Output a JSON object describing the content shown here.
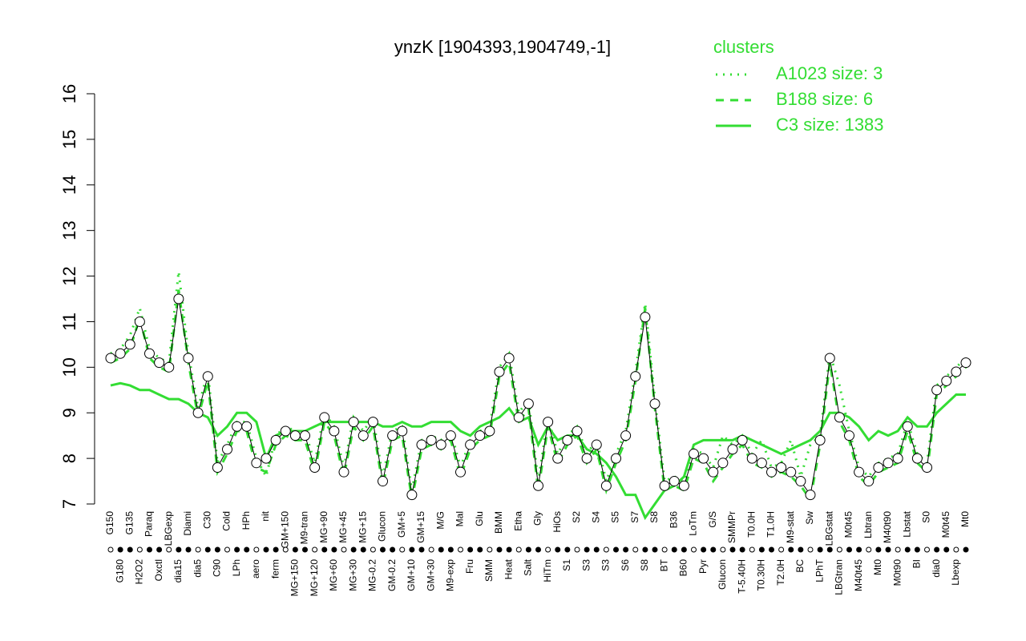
{
  "chart_data": {
    "type": "line",
    "title": "ynzK [1904393,1904749,-1]",
    "legend_title": "clusters",
    "legend": "top-right",
    "categories": [
      "G150",
      "G180",
      "G135",
      "H2O2",
      "Paraq",
      "Oxctl",
      "LBGexp",
      "dia15",
      "Diami",
      "dia5",
      "C30",
      "C90",
      "Cold",
      "LPh",
      "HPh",
      "aero",
      "nit",
      "ferm",
      "GM+150",
      "MG+150",
      "M9-tran",
      "MG+120",
      "MG+90",
      "MG+60",
      "MG+45",
      "MG+30",
      "MG+15",
      "MG-0.2",
      "Glucon",
      "GM-0.2",
      "GM+5",
      "GM+10",
      "GM+15",
      "GM+30",
      "M/G",
      "M9-exp",
      "Mal",
      "Fru",
      "Glu",
      "SMM",
      "BMM",
      "Heat",
      "Etha",
      "Salt",
      "Gly",
      "HiTm",
      "HiOs",
      "S1",
      "S2",
      "S3",
      "S4",
      "S3",
      "S5",
      "S6",
      "S7",
      "S8",
      "S8",
      "BT",
      "B36",
      "B60",
      "LoTm",
      "Pyr",
      "G/S",
      "Glucon",
      "SMMPr",
      "T-5.40H",
      "T0.0H",
      "T0.30H",
      "T1.0H",
      "T2.0H",
      "M9-stat",
      "BC",
      "Sw",
      "LPhT",
      "LBGstat",
      "LBGtran",
      "M0t45",
      "M40t45",
      "Lbtran",
      "Mt0",
      "M40t90",
      "M0t90",
      "Lbstat",
      "BI",
      "S0",
      "dia0",
      "M0t45",
      "Lbexp",
      "Mt0"
    ],
    "points": [
      10.2,
      10.3,
      10.5,
      11.0,
      10.3,
      10.1,
      10.0,
      11.5,
      10.2,
      9.0,
      9.8,
      7.8,
      8.2,
      8.7,
      8.7,
      7.9,
      8.0,
      8.4,
      8.6,
      8.5,
      8.5,
      7.8,
      8.9,
      8.6,
      7.7,
      8.8,
      8.5,
      8.8,
      7.5,
      8.5,
      8.6,
      7.2,
      8.3,
      8.4,
      8.3,
      8.5,
      7.7,
      8.3,
      8.5,
      8.6,
      9.9,
      10.2,
      8.9,
      9.2,
      7.4,
      8.8,
      8.0,
      8.4,
      8.6,
      8.0,
      8.3,
      7.4,
      8.0,
      8.5,
      9.8,
      11.1,
      9.2,
      7.4,
      7.5,
      7.4,
      8.1,
      8.0,
      7.7,
      7.9,
      8.2,
      8.4,
      8.0,
      7.9,
      7.7,
      7.8,
      7.7,
      7.5,
      7.2,
      8.4,
      10.2,
      8.9,
      8.5,
      7.7,
      7.5,
      7.8,
      7.9,
      8.0,
      8.7,
      8.0,
      7.8,
      9.5,
      9.7,
      9.9,
      10.1
    ],
    "point_color": "#000000",
    "series": [
      {
        "name": "A1023 size: 3",
        "color": "#33dd33",
        "style": "dotted",
        "values": [
          10.3,
          10.4,
          10.7,
          11.3,
          10.4,
          10.2,
          10.1,
          12.1,
          10.3,
          9.1,
          9.9,
          7.9,
          8.3,
          8.8,
          8.8,
          8.0,
          7.6,
          8.5,
          8.7,
          8.6,
          8.6,
          7.9,
          9.0,
          8.7,
          7.8,
          8.9,
          8.6,
          8.9,
          7.6,
          8.6,
          8.7,
          7.3,
          8.4,
          8.5,
          8.4,
          8.6,
          7.8,
          8.4,
          8.6,
          8.7,
          10.0,
          10.3,
          9.0,
          9.3,
          7.5,
          8.9,
          8.1,
          8.5,
          8.7,
          8.1,
          8.4,
          7.5,
          8.1,
          8.6,
          9.9,
          11.4,
          9.3,
          7.5,
          7.6,
          7.5,
          8.2,
          8.1,
          7.8,
          8.5,
          8.3,
          8.5,
          8.1,
          8.4,
          7.8,
          7.9,
          8.4,
          7.6,
          8.3,
          8.5,
          10.3,
          9.6,
          8.6,
          7.8,
          7.6,
          7.9,
          8.0,
          8.1,
          8.8,
          8.1,
          7.9,
          9.6,
          9.8,
          10.0,
          10.2
        ]
      },
      {
        "name": "B188 size: 6",
        "color": "#33dd33",
        "style": "dashed",
        "values": [
          10.1,
          10.2,
          10.4,
          11.1,
          10.2,
          10.0,
          9.9,
          11.7,
          10.1,
          8.9,
          9.7,
          7.7,
          8.1,
          8.6,
          8.6,
          7.8,
          7.7,
          8.3,
          8.5,
          8.4,
          8.4,
          7.7,
          8.8,
          8.5,
          7.6,
          8.7,
          8.4,
          8.7,
          7.4,
          8.4,
          8.5,
          7.1,
          8.2,
          8.3,
          8.2,
          8.4,
          7.6,
          8.2,
          8.4,
          8.5,
          9.8,
          10.1,
          8.8,
          9.1,
          7.3,
          8.7,
          7.9,
          8.3,
          8.5,
          7.9,
          8.2,
          7.3,
          7.9,
          8.4,
          9.7,
          11.3,
          9.1,
          7.3,
          7.4,
          7.3,
          8.0,
          7.9,
          7.5,
          7.8,
          8.1,
          8.3,
          7.9,
          7.8,
          7.6,
          7.7,
          7.6,
          7.4,
          7.1,
          8.3,
          10.1,
          8.8,
          8.4,
          7.6,
          7.4,
          7.7,
          7.8,
          7.9,
          8.6,
          7.9,
          7.7,
          9.4,
          9.6,
          9.8,
          10.0
        ]
      },
      {
        "name": "C3 size: 1383",
        "color": "#33dd33",
        "style": "solid",
        "values": [
          9.6,
          9.65,
          9.6,
          9.5,
          9.5,
          9.4,
          9.3,
          9.3,
          9.2,
          9.0,
          8.9,
          8.5,
          8.7,
          9.0,
          9.0,
          8.8,
          8.0,
          8.5,
          8.6,
          8.6,
          8.6,
          8.7,
          8.8,
          8.8,
          8.8,
          8.8,
          8.8,
          8.8,
          8.7,
          8.7,
          8.8,
          8.7,
          8.7,
          8.8,
          8.8,
          8.8,
          8.6,
          8.5,
          8.7,
          8.8,
          8.9,
          9.1,
          8.8,
          8.9,
          8.3,
          8.7,
          8.4,
          8.5,
          8.5,
          8.2,
          8.1,
          7.9,
          7.6,
          7.2,
          7.2,
          6.7,
          7.0,
          7.3,
          7.4,
          7.6,
          8.3,
          8.4,
          8.4,
          8.4,
          8.4,
          8.5,
          8.4,
          8.3,
          8.2,
          8.1,
          8.2,
          8.3,
          8.4,
          8.6,
          9.0,
          9.0,
          8.9,
          8.7,
          8.4,
          8.6,
          8.5,
          8.6,
          8.9,
          8.7,
          8.7,
          9.0,
          9.2,
          9.4,
          9.4
        ]
      }
    ],
    "ylim": [
      7,
      16
    ],
    "yticks": [
      7,
      8,
      9,
      10,
      11,
      12,
      13,
      14,
      15,
      16
    ]
  }
}
